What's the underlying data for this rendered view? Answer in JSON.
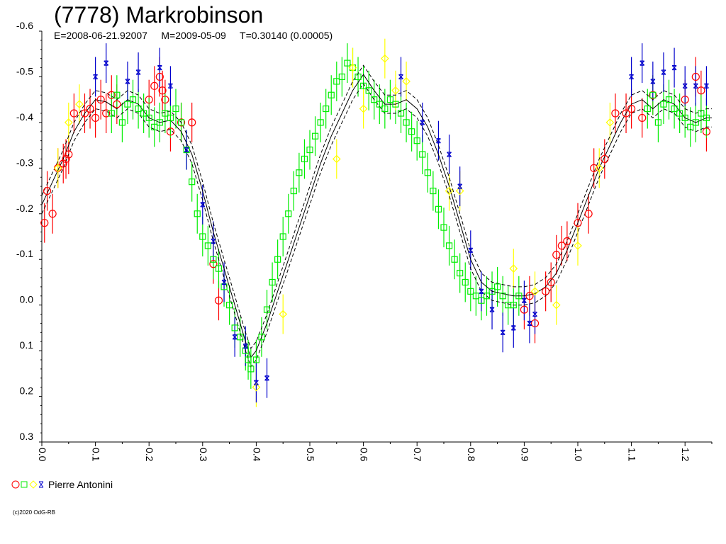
{
  "header": {
    "title": "(7778) Markrobinson",
    "subtitle": "E=2008-06-21.92007     M=2009-05-09     T=0.30140 (0.00005)"
  },
  "legend": {
    "observer": "Pierre Antonini",
    "colors": [
      "#ff0000",
      "#00ee00",
      "#ffff00",
      "#0000cc"
    ]
  },
  "footer": {
    "copyright": "(c)2020 OdG-RB"
  },
  "chart_data": {
    "type": "scatter",
    "title": "(7778) Markrobinson",
    "xlabel": "",
    "ylabel": "",
    "xlim": [
      0.0,
      1.25
    ],
    "ylim": [
      0.3,
      -0.6
    ],
    "y_inverted": true,
    "grid": false,
    "legend_position": "bottom-left",
    "x_ticks": [
      "0.0",
      "0.1",
      "0.2",
      "0.3",
      "0.4",
      "0.5",
      "0.6",
      "0.7",
      "0.8",
      "0.9",
      "1.0",
      "1.1",
      "1.2"
    ],
    "y_ticks": [
      "-0.6",
      "-0.5",
      "-0.4",
      "-0.3",
      "-0.2",
      "-0.1",
      "0.0",
      "0.1",
      "0.2",
      "0.3"
    ],
    "fit_curve": {
      "name": "",
      "color": "#000000",
      "x": [
        0.0,
        0.02,
        0.04,
        0.06,
        0.08,
        0.1,
        0.12,
        0.14,
        0.16,
        0.18,
        0.2,
        0.22,
        0.24,
        0.26,
        0.28,
        0.3,
        0.32,
        0.34,
        0.36,
        0.38,
        0.39,
        0.4,
        0.42,
        0.44,
        0.46,
        0.48,
        0.5,
        0.52,
        0.54,
        0.56,
        0.58,
        0.6,
        0.62,
        0.64,
        0.66,
        0.68,
        0.7,
        0.72,
        0.74,
        0.76,
        0.78,
        0.8,
        0.82,
        0.84,
        0.86,
        0.88,
        0.9,
        0.92,
        0.94,
        0.96,
        0.98,
        1.0,
        1.02,
        1.04,
        1.06,
        1.08,
        1.1,
        1.12,
        1.14,
        1.16,
        1.18,
        1.2,
        1.22,
        1.24,
        1.25
      ],
      "y": [
        -0.22,
        -0.27,
        -0.32,
        -0.38,
        -0.42,
        -0.45,
        -0.445,
        -0.43,
        -0.45,
        -0.44,
        -0.41,
        -0.4,
        -0.405,
        -0.38,
        -0.33,
        -0.25,
        -0.16,
        -0.08,
        0.0,
        0.08,
        0.115,
        0.1,
        0.04,
        -0.03,
        -0.1,
        -0.17,
        -0.24,
        -0.31,
        -0.37,
        -0.42,
        -0.47,
        -0.505,
        -0.47,
        -0.44,
        -0.44,
        -0.45,
        -0.43,
        -0.39,
        -0.33,
        -0.26,
        -0.18,
        -0.1,
        -0.05,
        -0.03,
        -0.025,
        -0.02,
        -0.02,
        -0.025,
        -0.04,
        -0.07,
        -0.12,
        -0.18,
        -0.24,
        -0.3,
        -0.35,
        -0.4,
        -0.44,
        -0.45,
        -0.43,
        -0.45,
        -0.44,
        -0.41,
        -0.4,
        -0.41,
        -0.41
      ]
    },
    "series": [
      {
        "name": "Pierre Antonini",
        "marker": "circle",
        "color": "#ff0000",
        "x": [
          0.005,
          0.01,
          0.02,
          0.03,
          0.04,
          0.045,
          0.05,
          0.06,
          0.08,
          0.09,
          0.1,
          0.11,
          0.12,
          0.13,
          0.14,
          0.2,
          0.21,
          0.22,
          0.225,
          0.23,
          0.24,
          0.26,
          0.28,
          0.32,
          0.33,
          0.9,
          0.91,
          0.92,
          0.94,
          0.95,
          0.96,
          0.97,
          0.98,
          1.0,
          1.02,
          1.03,
          1.05,
          1.07,
          1.09,
          1.1,
          1.12,
          1.14,
          1.2,
          1.22,
          1.23,
          1.24
        ],
        "y": [
          -0.18,
          -0.25,
          -0.2,
          -0.3,
          -0.31,
          -0.32,
          -0.33,
          -0.42,
          -0.42,
          -0.43,
          -0.41,
          -0.45,
          -0.42,
          -0.46,
          -0.44,
          -0.45,
          -0.48,
          -0.5,
          -0.47,
          -0.45,
          -0.38,
          -0.4,
          -0.4,
          -0.09,
          -0.01,
          0.01,
          -0.02,
          0.04,
          -0.03,
          -0.05,
          -0.11,
          -0.13,
          -0.14,
          -0.18,
          -0.2,
          -0.3,
          -0.32,
          -0.42,
          -0.42,
          -0.43,
          -0.41,
          -0.46,
          -0.45,
          -0.5,
          -0.47,
          -0.38
        ]
      },
      {
        "name": "Pierre Antonini",
        "marker": "square",
        "color": "#00ee00",
        "x": [
          0.13,
          0.14,
          0.15,
          0.16,
          0.17,
          0.18,
          0.19,
          0.2,
          0.21,
          0.22,
          0.23,
          0.24,
          0.25,
          0.26,
          0.27,
          0.28,
          0.29,
          0.3,
          0.31,
          0.32,
          0.33,
          0.34,
          0.35,
          0.36,
          0.37,
          0.38,
          0.385,
          0.39,
          0.4,
          0.41,
          0.42,
          0.43,
          0.44,
          0.45,
          0.46,
          0.47,
          0.48,
          0.49,
          0.5,
          0.51,
          0.52,
          0.53,
          0.54,
          0.55,
          0.56,
          0.57,
          0.58,
          0.59,
          0.6,
          0.61,
          0.62,
          0.63,
          0.64,
          0.65,
          0.66,
          0.67,
          0.68,
          0.69,
          0.7,
          0.71,
          0.72,
          0.73,
          0.74,
          0.75,
          0.76,
          0.77,
          0.78,
          0.79,
          0.8,
          0.81,
          0.82,
          0.83,
          0.84,
          0.85,
          0.86,
          0.87,
          0.88,
          0.89,
          1.13,
          1.14,
          1.15,
          1.16,
          1.17,
          1.18,
          1.19,
          1.2,
          1.21,
          1.22,
          1.23,
          1.24
        ],
        "y": [
          -0.42,
          -0.46,
          -0.4,
          -0.44,
          -0.45,
          -0.43,
          -0.42,
          -0.41,
          -0.39,
          -0.4,
          -0.42,
          -0.41,
          -0.43,
          -0.4,
          -0.34,
          -0.27,
          -0.2,
          -0.15,
          -0.13,
          -0.1,
          -0.08,
          -0.04,
          0.0,
          0.05,
          0.07,
          0.1,
          0.12,
          0.14,
          0.12,
          0.07,
          0.01,
          -0.05,
          -0.1,
          -0.15,
          -0.2,
          -0.25,
          -0.29,
          -0.32,
          -0.34,
          -0.37,
          -0.4,
          -0.43,
          -0.46,
          -0.49,
          -0.5,
          -0.53,
          -0.52,
          -0.5,
          -0.48,
          -0.47,
          -0.45,
          -0.44,
          -0.43,
          -0.45,
          -0.44,
          -0.42,
          -0.4,
          -0.38,
          -0.36,
          -0.33,
          -0.29,
          -0.25,
          -0.21,
          -0.17,
          -0.13,
          -0.1,
          -0.07,
          -0.05,
          -0.03,
          -0.02,
          -0.01,
          -0.02,
          -0.03,
          -0.04,
          -0.02,
          0.0,
          0.0,
          -0.02,
          -0.43,
          -0.46,
          -0.4,
          -0.44,
          -0.45,
          -0.43,
          -0.42,
          -0.41,
          -0.39,
          -0.4,
          -0.42,
          -0.41
        ]
      },
      {
        "name": "Pierre Antonini",
        "marker": "diamond",
        "color": "#ffff00",
        "x": [
          0.03,
          0.05,
          0.07,
          0.4,
          0.45,
          0.55,
          0.58,
          0.6,
          0.64,
          0.66,
          0.68,
          0.76,
          0.78,
          0.88,
          0.92,
          0.96,
          1.0,
          1.04,
          1.06
        ],
        "y": [
          -0.3,
          -0.4,
          -0.44,
          0.18,
          0.02,
          -0.32,
          -0.52,
          -0.43,
          -0.54,
          -0.47,
          -0.49,
          -0.25,
          -0.25,
          -0.08,
          -0.03,
          0.0,
          -0.13,
          -0.3,
          -0.4
        ]
      },
      {
        "name": "Pierre Antonini",
        "marker": "cross",
        "color": "#0000cc",
        "x": [
          0.1,
          0.12,
          0.16,
          0.18,
          0.22,
          0.24,
          0.27,
          0.3,
          0.32,
          0.34,
          0.36,
          0.38,
          0.4,
          0.42,
          0.67,
          0.71,
          0.74,
          0.76,
          0.78,
          0.8,
          0.82,
          0.84,
          0.86,
          0.88,
          0.9,
          0.91,
          0.92,
          1.1,
          1.12,
          1.14,
          1.16,
          1.18,
          1.2,
          1.22,
          1.24
        ],
        "y": [
          -0.5,
          -0.53,
          -0.49,
          -0.51,
          -0.52,
          -0.48,
          -0.34,
          -0.22,
          -0.14,
          -0.05,
          0.07,
          0.09,
          0.17,
          0.16,
          -0.5,
          -0.4,
          -0.36,
          -0.33,
          -0.26,
          -0.12,
          -0.03,
          0.01,
          0.06,
          0.05,
          -0.01,
          0.04,
          0.02,
          -0.5,
          -0.53,
          -0.49,
          -0.51,
          -0.52,
          -0.48,
          -0.48,
          -0.48
        ]
      }
    ]
  }
}
